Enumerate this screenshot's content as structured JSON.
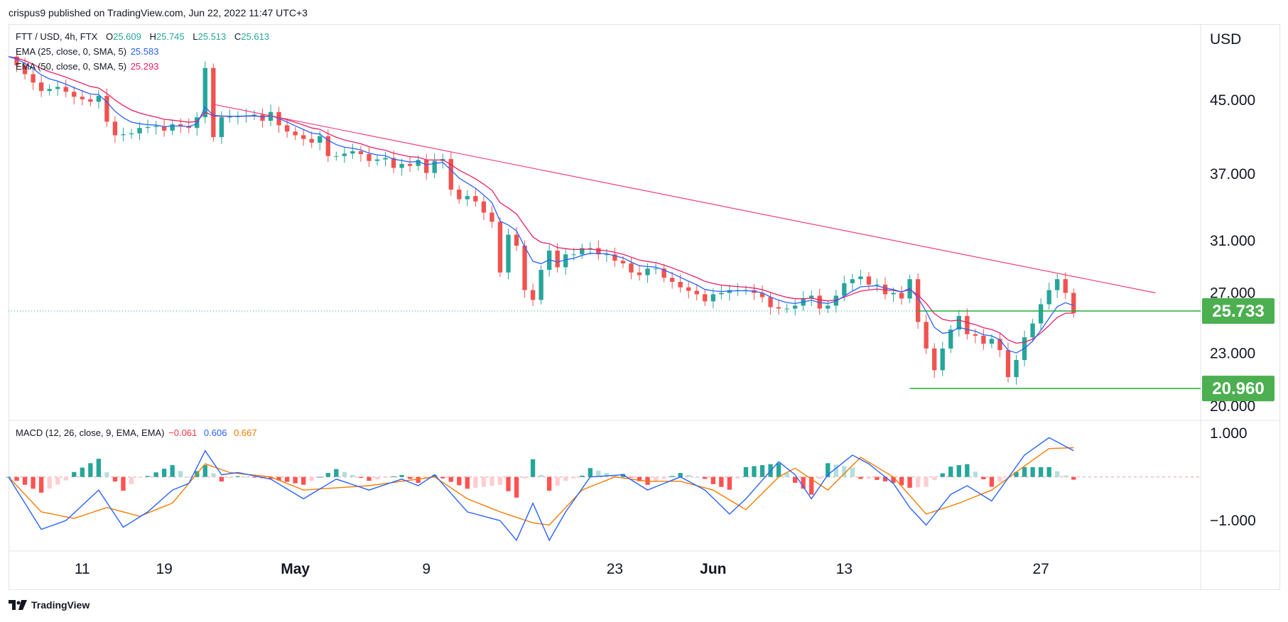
{
  "header": {
    "published_line": "crispus9 published on TradingView.com, Jun 22, 2022 11:47 UTC+3"
  },
  "legend": {
    "symbol_line": "FTT / USD, 4h, FTX",
    "ohlc": {
      "o_label": "O",
      "o": "25.609",
      "h_label": "H",
      "h": "25.745",
      "l_label": "L",
      "l": "25.513",
      "c_label": "C",
      "c": "25.613"
    },
    "ema25": {
      "label": "EMA (25, close, 0, SMA, 5)",
      "value": "25.583",
      "color": "#2962ff"
    },
    "ema50": {
      "label": "EMA (50, close, 0, SMA, 5)",
      "value": "25.293",
      "color": "#e91e63"
    },
    "macd": {
      "label": "MACD (12, 26, close, 9, EMA, EMA)",
      "hist": "−0.061",
      "macd": "0.606",
      "signal": "0.667",
      "hist_color": "#f23645",
      "macd_color": "#2962ff",
      "signal_color": "#f57c00"
    }
  },
  "price_axis": {
    "currency": "USD",
    "ticks": [
      "45.000",
      "37.000",
      "31.000",
      "27.000",
      "23.000",
      "20.000"
    ],
    "tag_upper": "25.733",
    "tag_lower": "20.960"
  },
  "macd_axis": {
    "ticks": [
      "1.000",
      "−1.000"
    ]
  },
  "time_axis": {
    "ticks": [
      "11",
      "19",
      "May",
      "9",
      "23",
      "Jun",
      "13",
      "27"
    ],
    "bold": [
      "May",
      "Jun"
    ]
  },
  "footer": {
    "brand": "TradingView"
  },
  "colors": {
    "up": "#26a69a",
    "down": "#ef5350",
    "trendline": "#f23f73",
    "support": "#22ab3a",
    "tag": "#4caf50",
    "grid": "#e0e3eb"
  },
  "chart_data": {
    "type": "candlestick",
    "interval": "4h",
    "date_range": [
      "2022-04-05",
      "2022-06-22"
    ],
    "price_ylim_log": [
      20.0,
      53.0
    ],
    "price_path_closes": [
      [
        0,
        50.5
      ],
      [
        2,
        48.2
      ],
      [
        4,
        46.1
      ],
      [
        6,
        46.6
      ],
      [
        8,
        45.4
      ],
      [
        10,
        44.8
      ],
      [
        11,
        45.5
      ],
      [
        12,
        42.5
      ],
      [
        13,
        41.0
      ],
      [
        15,
        41.2
      ],
      [
        16,
        41.8
      ],
      [
        18,
        42.0
      ],
      [
        19,
        41.5
      ],
      [
        20,
        42.2
      ],
      [
        21,
        42.0
      ],
      [
        22,
        41.8
      ],
      [
        23,
        43.0
      ],
      [
        24,
        49.0
      ],
      [
        25,
        40.8
      ],
      [
        26,
        43.0
      ],
      [
        28,
        43.1
      ],
      [
        30,
        43.3
      ],
      [
        31,
        42.6
      ],
      [
        32,
        43.6
      ],
      [
        33,
        42.1
      ],
      [
        34,
        41.4
      ],
      [
        36,
        40.6
      ],
      [
        37,
        40.2
      ],
      [
        38,
        40.9
      ],
      [
        39,
        38.8
      ],
      [
        40,
        38.8
      ],
      [
        42,
        39.3
      ],
      [
        43,
        39.0
      ],
      [
        44,
        38.3
      ],
      [
        46,
        38.6
      ],
      [
        47,
        37.6
      ],
      [
        48,
        38.0
      ],
      [
        49,
        37.8
      ],
      [
        50,
        38.4
      ],
      [
        51,
        37.1
      ],
      [
        52,
        38.3
      ],
      [
        53,
        38.5
      ],
      [
        54,
        35.5
      ],
      [
        55,
        34.6
      ],
      [
        56,
        34.9
      ],
      [
        57,
        34.4
      ],
      [
        58,
        33.4
      ],
      [
        59,
        32.6
      ],
      [
        60,
        28.5
      ],
      [
        61,
        31.5
      ],
      [
        62,
        30.6
      ],
      [
        63,
        27.2
      ],
      [
        64,
        26.5
      ],
      [
        65,
        28.7
      ],
      [
        66,
        30.2
      ],
      [
        67,
        28.9
      ],
      [
        68,
        29.9
      ],
      [
        69,
        29.9
      ],
      [
        70,
        30.4
      ],
      [
        71,
        30.4
      ],
      [
        72,
        29.9
      ],
      [
        73,
        29.9
      ],
      [
        74,
        29.4
      ],
      [
        75,
        29.2
      ],
      [
        76,
        28.5
      ],
      [
        77,
        28.3
      ],
      [
        78,
        28.8
      ],
      [
        79,
        28.8
      ],
      [
        80,
        28.1
      ],
      [
        81,
        27.8
      ],
      [
        82,
        27.4
      ],
      [
        84,
        26.9
      ],
      [
        85,
        26.4
      ],
      [
        86,
        26.9
      ],
      [
        87,
        27.0
      ],
      [
        88,
        27.2
      ],
      [
        89,
        27.2
      ],
      [
        90,
        27.2
      ],
      [
        91,
        27.0
      ],
      [
        92,
        26.7
      ],
      [
        93,
        26.0
      ],
      [
        94,
        25.9
      ],
      [
        95,
        25.9
      ],
      [
        96,
        26.1
      ],
      [
        97,
        26.6
      ],
      [
        98,
        26.8
      ],
      [
        99,
        25.9
      ],
      [
        100,
        26.1
      ],
      [
        101,
        26.8
      ],
      [
        102,
        27.7
      ],
      [
        103,
        28.0
      ],
      [
        104,
        28.2
      ],
      [
        105,
        27.6
      ],
      [
        106,
        27.6
      ],
      [
        107,
        26.9
      ],
      [
        108,
        27.0
      ],
      [
        109,
        26.6
      ],
      [
        110,
        28.0
      ],
      [
        111,
        25.0
      ],
      [
        112,
        23.3
      ],
      [
        113,
        22.0
      ],
      [
        114,
        23.3
      ],
      [
        115,
        24.5
      ],
      [
        116,
        25.4
      ],
      [
        117,
        24.2
      ],
      [
        118,
        24.1
      ],
      [
        119,
        23.6
      ],
      [
        120,
        23.9
      ],
      [
        121,
        23.2
      ],
      [
        122,
        21.6
      ],
      [
        123,
        22.6
      ],
      [
        124,
        24.0
      ],
      [
        125,
        24.9
      ],
      [
        126,
        26.2
      ],
      [
        127,
        27.2
      ],
      [
        128,
        28.0
      ],
      [
        129,
        27.0
      ],
      [
        130,
        25.6
      ]
    ],
    "macd_ylim": [
      -1.5,
      1.1
    ],
    "macd_path": [
      [
        0,
        0.0
      ],
      [
        4,
        -1.2
      ],
      [
        7,
        -1.0
      ],
      [
        11,
        -0.3
      ],
      [
        14,
        -1.15
      ],
      [
        17,
        -0.8
      ],
      [
        20,
        -0.3
      ],
      [
        22,
        -0.15
      ],
      [
        24,
        0.6
      ],
      [
        26,
        0.05
      ],
      [
        28,
        0.1
      ],
      [
        32,
        -0.05
      ],
      [
        36,
        -0.5
      ],
      [
        40,
        -0.05
      ],
      [
        44,
        -0.3
      ],
      [
        48,
        -0.05
      ],
      [
        50,
        -0.2
      ],
      [
        52,
        0.05
      ],
      [
        56,
        -0.8
      ],
      [
        60,
        -1.0
      ],
      [
        62,
        -1.45
      ],
      [
        64,
        -0.6
      ],
      [
        66,
        -1.45
      ],
      [
        68,
        -0.8
      ],
      [
        71,
        0.0
      ],
      [
        75,
        0.05
      ],
      [
        78,
        -0.3
      ],
      [
        82,
        0.0
      ],
      [
        85,
        -0.3
      ],
      [
        88,
        -0.85
      ],
      [
        90,
        -0.5
      ],
      [
        94,
        0.35
      ],
      [
        96,
        0.05
      ],
      [
        98,
        -0.5
      ],
      [
        100,
        0.05
      ],
      [
        103,
        0.5
      ],
      [
        105,
        0.3
      ],
      [
        108,
        -0.15
      ],
      [
        110,
        -0.7
      ],
      [
        112,
        -1.1
      ],
      [
        115,
        -0.4
      ],
      [
        117,
        -0.2
      ],
      [
        120,
        -0.55
      ],
      [
        124,
        0.5
      ],
      [
        127,
        0.9
      ],
      [
        130,
        0.6
      ]
    ],
    "signal_path": [
      [
        0,
        0.0
      ],
      [
        4,
        -0.8
      ],
      [
        8,
        -0.95
      ],
      [
        12,
        -0.7
      ],
      [
        16,
        -0.9
      ],
      [
        20,
        -0.6
      ],
      [
        24,
        0.3
      ],
      [
        27,
        0.1
      ],
      [
        32,
        0.0
      ],
      [
        36,
        -0.3
      ],
      [
        40,
        -0.25
      ],
      [
        44,
        -0.2
      ],
      [
        48,
        -0.1
      ],
      [
        52,
        0.0
      ],
      [
        56,
        -0.5
      ],
      [
        60,
        -0.8
      ],
      [
        64,
        -1.05
      ],
      [
        66,
        -1.1
      ],
      [
        70,
        -0.3
      ],
      [
        74,
        0.0
      ],
      [
        78,
        -0.1
      ],
      [
        82,
        -0.1
      ],
      [
        86,
        -0.3
      ],
      [
        90,
        -0.75
      ],
      [
        94,
        0.0
      ],
      [
        96,
        0.2
      ],
      [
        100,
        -0.3
      ],
      [
        104,
        0.45
      ],
      [
        108,
        0.0
      ],
      [
        112,
        -0.85
      ],
      [
        116,
        -0.6
      ],
      [
        120,
        -0.3
      ],
      [
        124,
        0.25
      ],
      [
        127,
        0.65
      ],
      [
        130,
        0.67
      ]
    ],
    "trendline": {
      "from": [
        25,
        44.5
      ],
      "to": [
        140,
        27.0
      ]
    },
    "support_levels": [
      25.733,
      20.96
    ],
    "last_price": 25.733
  }
}
